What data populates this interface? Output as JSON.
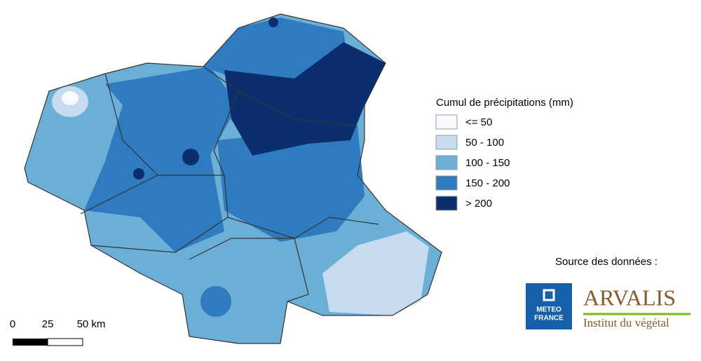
{
  "legend": {
    "title": "Cumul de précipitations (mm)",
    "items": [
      {
        "label": "<= 50",
        "color": "#f7fbff"
      },
      {
        "label": "50 - 100",
        "color": "#c6dbef"
      },
      {
        "label": "100 - 150",
        "color": "#6baed6"
      },
      {
        "label": "150 - 200",
        "color": "#2f7bbf"
      },
      {
        "label": "> 200",
        "color": "#0b2f6e"
      }
    ]
  },
  "scale_bar": {
    "labels": [
      "0",
      "25",
      "50 km"
    ]
  },
  "source": {
    "title": "Source des données :",
    "meteo_logo": [
      "METEO",
      "FRANCE"
    ],
    "arvalis_logo": {
      "name": "ARVALIS",
      "subtitle": "Institut du végétal"
    }
  }
}
